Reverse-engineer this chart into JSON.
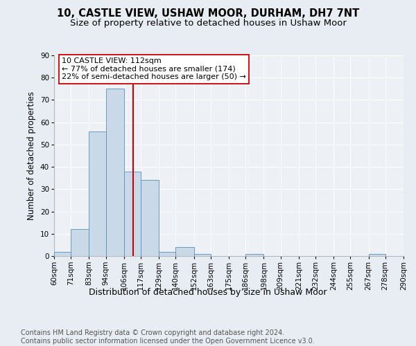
{
  "title1": "10, CASTLE VIEW, USHAW MOOR, DURHAM, DH7 7NT",
  "title2": "Size of property relative to detached houses in Ushaw Moor",
  "xlabel": "Distribution of detached houses by size in Ushaw Moor",
  "ylabel": "Number of detached properties",
  "bin_labels": [
    "60sqm",
    "71sqm",
    "83sqm",
    "94sqm",
    "106sqm",
    "117sqm",
    "129sqm",
    "140sqm",
    "152sqm",
    "163sqm",
    "175sqm",
    "186sqm",
    "198sqm",
    "209sqm",
    "221sqm",
    "232sqm",
    "244sqm",
    "255sqm",
    "267sqm",
    "278sqm",
    "290sqm"
  ],
  "bin_edges": [
    60,
    71,
    83,
    94,
    106,
    117,
    129,
    140,
    152,
    163,
    175,
    186,
    198,
    209,
    221,
    232,
    244,
    255,
    267,
    278,
    290
  ],
  "bar_heights": [
    2,
    12,
    56,
    75,
    38,
    34,
    2,
    4,
    1,
    0,
    0,
    1,
    0,
    0,
    0,
    0,
    0,
    0,
    1,
    0
  ],
  "bar_color": "#c9d9e8",
  "bar_edge_color": "#5b8db8",
  "vline_x": 112,
  "vline_color": "#cc0000",
  "annotation_line1": "10 CASTLE VIEW: 112sqm",
  "annotation_line2": "← 77% of detached houses are smaller (174)",
  "annotation_line3": "22% of semi-detached houses are larger (50) →",
  "annotation_box_color": "#ffffff",
  "annotation_box_edge": "#cc0000",
  "ylim": [
    0,
    90
  ],
  "yticks": [
    0,
    10,
    20,
    30,
    40,
    50,
    60,
    70,
    80,
    90
  ],
  "bg_color": "#e8edf3",
  "plot_bg_color": "#edf1f6",
  "grid_color": "#ffffff",
  "footer1": "Contains HM Land Registry data © Crown copyright and database right 2024.",
  "footer2": "Contains public sector information licensed under the Open Government Licence v3.0.",
  "title1_fontsize": 10.5,
  "title2_fontsize": 9.5,
  "xlabel_fontsize": 9,
  "ylabel_fontsize": 8.5,
  "tick_fontsize": 7.5,
  "annotation_fontsize": 8,
  "footer_fontsize": 7
}
